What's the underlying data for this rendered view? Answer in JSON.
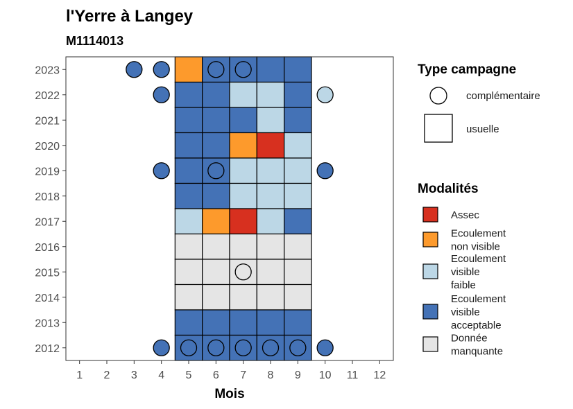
{
  "chart_data": {
    "type": "heatmap",
    "title": "l'Yerre à Langey",
    "subtitle": "M1114013",
    "xlabel": "Mois",
    "ylabel": "",
    "x_ticks": [
      1,
      2,
      3,
      4,
      5,
      6,
      7,
      8,
      9,
      10,
      11,
      12
    ],
    "y_ticks": [
      2012,
      2013,
      2014,
      2015,
      2016,
      2017,
      2018,
      2019,
      2020,
      2021,
      2022,
      2023
    ],
    "xlim": [
      0.5,
      12.5
    ],
    "ylim": [
      2011.5,
      2023.5
    ],
    "colors": {
      "assec": "#d7301f",
      "ecoulement_non_visible": "#fd9a2c",
      "ecoulement_visible_faible": "#bcd7e6",
      "ecoulement_visible_acceptable": "#4472b6",
      "donnee_manquante": "#e5e5e5"
    },
    "legend_type": {
      "title": "Type campagne",
      "entries": [
        {
          "shape": "circle",
          "label": "complémentaire"
        },
        {
          "shape": "square",
          "label": "usuelle"
        }
      ]
    },
    "legend_modalites": {
      "title": "Modalités",
      "entries": [
        {
          "key": "assec",
          "lines": [
            "Assec"
          ]
        },
        {
          "key": "ecoulement_non_visible",
          "lines": [
            "Ecoulement",
            "non visible"
          ]
        },
        {
          "key": "ecoulement_visible_faible",
          "lines": [
            "Ecoulement",
            "visible",
            "faible"
          ]
        },
        {
          "key": "ecoulement_visible_acceptable",
          "lines": [
            "Ecoulement",
            "visible",
            "acceptable"
          ]
        },
        {
          "key": "donnee_manquante",
          "lines": [
            "Donnée",
            "manquante"
          ]
        }
      ]
    },
    "usuelle": [
      {
        "year": 2023,
        "months": {
          "5": "ecoulement_non_visible",
          "6": "ecoulement_visible_acceptable",
          "7": "ecoulement_visible_acceptable",
          "8": "ecoulement_visible_acceptable",
          "9": "ecoulement_visible_acceptable"
        }
      },
      {
        "year": 2022,
        "months": {
          "5": "ecoulement_visible_acceptable",
          "6": "ecoulement_visible_acceptable",
          "7": "ecoulement_visible_faible",
          "8": "ecoulement_visible_faible",
          "9": "ecoulement_visible_acceptable"
        }
      },
      {
        "year": 2021,
        "months": {
          "5": "ecoulement_visible_acceptable",
          "6": "ecoulement_visible_acceptable",
          "7": "ecoulement_visible_acceptable",
          "8": "ecoulement_visible_faible",
          "9": "ecoulement_visible_acceptable"
        }
      },
      {
        "year": 2020,
        "months": {
          "5": "ecoulement_visible_acceptable",
          "6": "ecoulement_visible_acceptable",
          "7": "ecoulement_non_visible",
          "8": "assec",
          "9": "ecoulement_visible_faible"
        }
      },
      {
        "year": 2019,
        "months": {
          "5": "ecoulement_visible_acceptable",
          "6": "ecoulement_visible_acceptable",
          "7": "ecoulement_visible_faible",
          "8": "ecoulement_visible_faible",
          "9": "ecoulement_visible_faible"
        }
      },
      {
        "year": 2018,
        "months": {
          "5": "ecoulement_visible_acceptable",
          "6": "ecoulement_visible_acceptable",
          "7": "ecoulement_visible_faible",
          "8": "ecoulement_visible_faible",
          "9": "ecoulement_visible_faible"
        }
      },
      {
        "year": 2017,
        "months": {
          "5": "ecoulement_visible_faible",
          "6": "ecoulement_non_visible",
          "7": "assec",
          "8": "ecoulement_visible_faible",
          "9": "ecoulement_visible_acceptable"
        }
      },
      {
        "year": 2016,
        "months": {
          "5": "donnee_manquante",
          "6": "donnee_manquante",
          "7": "donnee_manquante",
          "8": "donnee_manquante",
          "9": "donnee_manquante"
        }
      },
      {
        "year": 2015,
        "months": {
          "5": "donnee_manquante",
          "6": "donnee_manquante",
          "7": "donnee_manquante",
          "8": "donnee_manquante",
          "9": "donnee_manquante"
        }
      },
      {
        "year": 2014,
        "months": {
          "5": "donnee_manquante",
          "6": "donnee_manquante",
          "7": "donnee_manquante",
          "8": "donnee_manquante",
          "9": "donnee_manquante"
        }
      },
      {
        "year": 2013,
        "months": {
          "5": "ecoulement_visible_acceptable",
          "6": "ecoulement_visible_acceptable",
          "7": "ecoulement_visible_acceptable",
          "8": "ecoulement_visible_acceptable",
          "9": "ecoulement_visible_acceptable"
        }
      },
      {
        "year": 2012,
        "months": {
          "5": "ecoulement_visible_acceptable",
          "6": "ecoulement_visible_acceptable",
          "7": "ecoulement_visible_acceptable",
          "8": "ecoulement_visible_acceptable",
          "9": "ecoulement_visible_acceptable"
        }
      }
    ],
    "complementaire": [
      {
        "year": 2023,
        "month": 3,
        "key": "ecoulement_visible_acceptable"
      },
      {
        "year": 2023,
        "month": 4,
        "key": "ecoulement_visible_acceptable"
      },
      {
        "year": 2023,
        "month": 6,
        "key": "ecoulement_visible_acceptable"
      },
      {
        "year": 2023,
        "month": 7,
        "key": "ecoulement_visible_acceptable"
      },
      {
        "year": 2022,
        "month": 4,
        "key": "ecoulement_visible_acceptable"
      },
      {
        "year": 2022,
        "month": 10,
        "key": "ecoulement_visible_faible"
      },
      {
        "year": 2019,
        "month": 4,
        "key": "ecoulement_visible_acceptable"
      },
      {
        "year": 2019,
        "month": 6,
        "key": "ecoulement_visible_acceptable"
      },
      {
        "year": 2019,
        "month": 10,
        "key": "ecoulement_visible_acceptable"
      },
      {
        "year": 2015,
        "month": 7,
        "key": "donnee_manquante"
      },
      {
        "year": 2012,
        "month": 4,
        "key": "ecoulement_visible_acceptable"
      },
      {
        "year": 2012,
        "month": 5,
        "key": "ecoulement_visible_acceptable"
      },
      {
        "year": 2012,
        "month": 6,
        "key": "ecoulement_visible_acceptable"
      },
      {
        "year": 2012,
        "month": 7,
        "key": "ecoulement_visible_acceptable"
      },
      {
        "year": 2012,
        "month": 8,
        "key": "ecoulement_visible_acceptable"
      },
      {
        "year": 2012,
        "month": 9,
        "key": "ecoulement_visible_acceptable"
      },
      {
        "year": 2012,
        "month": 10,
        "key": "ecoulement_visible_acceptable"
      }
    ]
  }
}
